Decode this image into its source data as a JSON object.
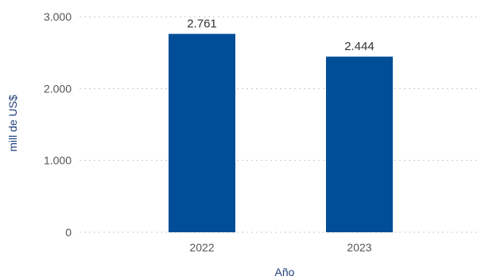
{
  "chart_data": {
    "type": "bar",
    "categories": [
      "2022",
      "2023"
    ],
    "values": [
      2761,
      2444
    ],
    "data_labels": [
      "2.761",
      "2.444"
    ],
    "xlabel": "Año",
    "ylabel": "mill de US$",
    "ylim": [
      0,
      3000
    ],
    "y_ticks": [
      0,
      1000,
      2000,
      3000
    ],
    "y_tick_labels": [
      "0",
      "1.000",
      "2.000",
      "3.000"
    ],
    "grid": true,
    "legend": "none",
    "bar_color": "#004e98"
  }
}
